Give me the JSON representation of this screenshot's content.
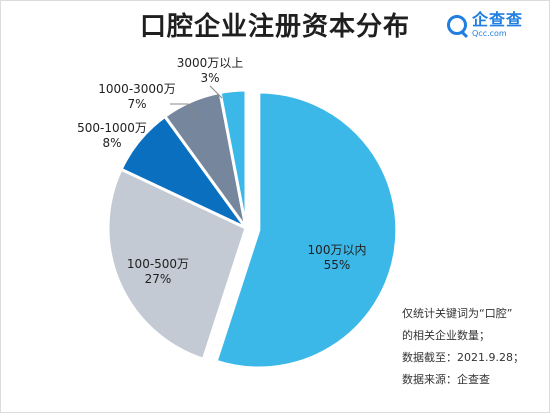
{
  "header": {
    "title": "口腔企业注册资本分布",
    "logo_name": "企查查",
    "logo_url": "Qcc.com"
  },
  "notes": [
    "仅统计关键词为“口腔”",
    "的相关企业数量；",
    "数据截至：2021.9.28；",
    "数据来源：企查查"
  ],
  "chart_data": {
    "type": "pie",
    "title": "口腔企业注册资本分布",
    "slices": [
      {
        "label": "100万以内",
        "value": 55,
        "value_label": "55%",
        "color": "#3cb8e8",
        "exploded": true
      },
      {
        "label": "100-500万",
        "value": 27,
        "value_label": "27%",
        "color": "#c3cad3",
        "exploded": false
      },
      {
        "label": "500-1000万",
        "value": 8,
        "value_label": "8%",
        "color": "#0b6fc0",
        "exploded": false
      },
      {
        "label": "1000-3000万",
        "value": 7,
        "value_label": "7%",
        "color": "#76869c",
        "exploded": false
      },
      {
        "label": "3000万以上",
        "value": 3,
        "value_label": "3%",
        "color": "#3cb8e8",
        "exploded": false
      }
    ]
  }
}
